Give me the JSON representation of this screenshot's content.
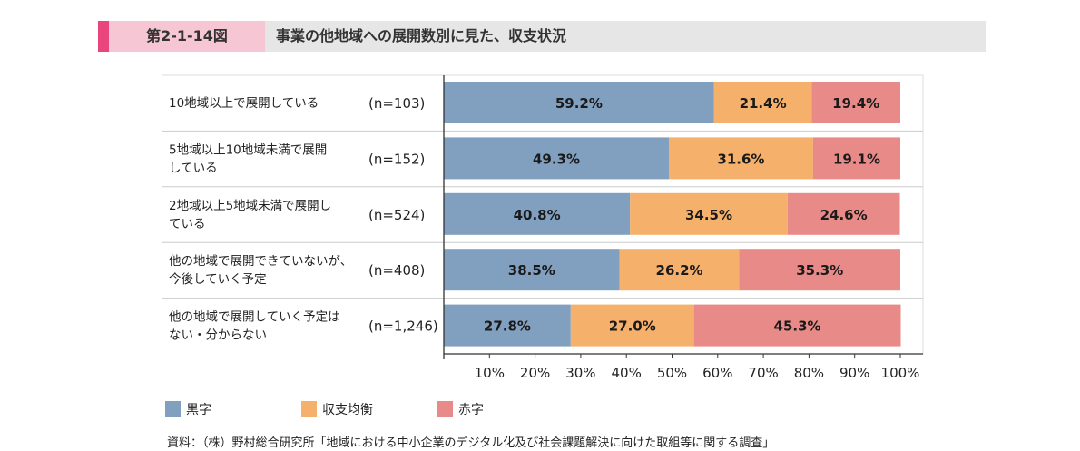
{
  "figure": {
    "number": "第2-1-14図",
    "title": "事業の他地域への展開数別に見た、収支状況"
  },
  "colors": {
    "accent": "#e8467c",
    "black_ink": "#819fbe",
    "break_even": "#f5b06c",
    "red_ink": "#e88a88"
  },
  "chart_data": {
    "type": "bar",
    "orientation": "horizontal",
    "stacked": true,
    "categories": [
      "10地域以上で展開している",
      "5地域以上10地域未満で展開している",
      "2地域以上5地域未満で展開している",
      "他の地域で展開できていないが、今後していく予定",
      "他の地域で展開していく予定はない・分からない"
    ],
    "category_lines": [
      [
        "10地域以上で展開している"
      ],
      [
        "5地域以上10地域未満で展開",
        "している"
      ],
      [
        "2地域以上5地域未満で展開し",
        "ている"
      ],
      [
        "他の地域で展開できていないが、",
        "今後していく予定"
      ],
      [
        "他の地域で展開していく予定は",
        "ない・分からない"
      ]
    ],
    "sample_sizes": [
      "(n=103)",
      "(n=152)",
      "(n=524)",
      "(n=408)",
      "(n=1,246)"
    ],
    "series": [
      {
        "name": "黒字",
        "values": [
          59.2,
          49.3,
          40.8,
          38.5,
          27.8
        ],
        "labels": [
          "59.2%",
          "49.3%",
          "40.8%",
          "38.5%",
          "27.8%"
        ]
      },
      {
        "name": "収支均衡",
        "values": [
          21.4,
          31.6,
          34.5,
          26.2,
          27.0
        ],
        "labels": [
          "21.4%",
          "31.6%",
          "34.5%",
          "26.2%",
          "27.0%"
        ]
      },
      {
        "name": "赤字",
        "values": [
          19.4,
          19.1,
          24.6,
          35.3,
          45.3
        ],
        "labels": [
          "19.4%",
          "19.1%",
          "24.6%",
          "35.3%",
          "45.3%"
        ]
      }
    ],
    "xlim": [
      0,
      100
    ],
    "x_ticks": [
      "10%",
      "20%",
      "30%",
      "40%",
      "50%",
      "60%",
      "70%",
      "80%",
      "90%",
      "100%"
    ],
    "legend_position": "bottom-left",
    "grid": false
  },
  "source": "資料：（株）野村総合研究所「地域における中小企業のデジタル化及び社会課題解決に向けた取組等に関する調査」"
}
